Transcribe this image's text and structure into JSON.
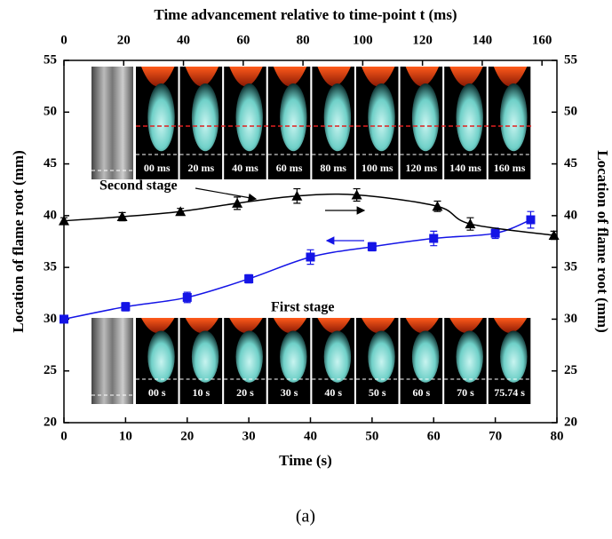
{
  "chart_data": {
    "type": "line",
    "title": "Time advancement relative to time-point t (ms)",
    "xlabel": "Time (s)",
    "ylabel": "Location of flame root (mm)",
    "y2label": "Location of flame root (mm)",
    "caption": "(a)",
    "xlim": [
      0,
      80
    ],
    "xticks": [
      0,
      10,
      20,
      30,
      40,
      50,
      60,
      70,
      80
    ],
    "x2lim": [
      0,
      165
    ],
    "x2ticks": [
      0,
      20,
      40,
      60,
      80,
      100,
      120,
      140,
      160
    ],
    "ylim": [
      20,
      55
    ],
    "yticks": [
      20,
      25,
      30,
      35,
      40,
      45,
      50,
      55
    ],
    "y2lim": [
      20,
      55
    ],
    "y2ticks": [
      20,
      25,
      30,
      35,
      40,
      45,
      50,
      55
    ],
    "series": [
      {
        "name": "First stage",
        "color": "#1414e6",
        "marker": "square",
        "x": [
          0,
          10,
          20,
          30,
          40,
          50,
          60,
          70,
          75.74
        ],
        "values": [
          30.0,
          31.2,
          32.1,
          33.9,
          36.0,
          37.0,
          37.8,
          38.3,
          39.6
        ],
        "errors": [
          0.3,
          0.4,
          0.5,
          0.4,
          0.7,
          0.4,
          0.7,
          0.5,
          0.8
        ]
      },
      {
        "name": "Second stage",
        "color": "#000000",
        "marker": "triangle",
        "axis": "x2",
        "x": [
          0,
          19.5,
          39,
          58,
          78,
          98,
          125,
          136,
          164
        ],
        "values": [
          39.5,
          39.9,
          40.4,
          41.2,
          41.9,
          42.0,
          40.9,
          39.2,
          38.1
        ],
        "errors": [
          0.3,
          0.4,
          0.3,
          0.6,
          0.7,
          0.6,
          0.5,
          0.6,
          0.4
        ]
      }
    ],
    "top_inset_labels": [
      "00 ms",
      "20 ms",
      "40 ms",
      "60 ms",
      "80 ms",
      "100 ms",
      "120 ms",
      "140 ms",
      "160 ms"
    ],
    "bottom_inset_labels": [
      "00 s",
      "10 s",
      "20 s",
      "30 s",
      "40 s",
      "50 s",
      "60 s",
      "70 s",
      "75.74 s"
    ]
  }
}
